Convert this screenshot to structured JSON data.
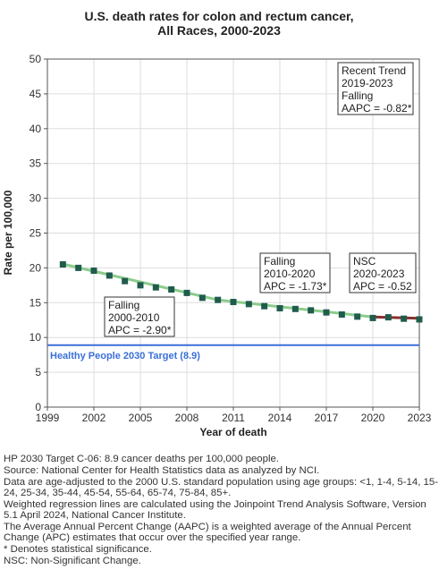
{
  "chart_data": {
    "type": "scatter",
    "title_lines": [
      "U.S. death rates for colon and rectum cancer,",
      "All Races,  2000-2023"
    ],
    "xlabel": "Year of death",
    "ylabel": "Rate per 100,000",
    "xlim": [
      1999,
      2023
    ],
    "ylim": [
      0,
      50
    ],
    "xticks": [
      1999,
      2002,
      2005,
      2008,
      2011,
      2014,
      2017,
      2020,
      2023
    ],
    "yticks": [
      0,
      5,
      10,
      15,
      20,
      25,
      30,
      35,
      40,
      45,
      50
    ],
    "grid": true,
    "points": {
      "x": [
        2000,
        2001,
        2002,
        2003,
        2004,
        2005,
        2006,
        2007,
        2008,
        2009,
        2010,
        2011,
        2012,
        2013,
        2014,
        2015,
        2016,
        2017,
        2018,
        2019,
        2020,
        2021,
        2022,
        2023
      ],
      "y": [
        20.5,
        20.0,
        19.6,
        18.9,
        18.1,
        17.5,
        17.2,
        16.9,
        16.4,
        15.7,
        15.4,
        15.1,
        14.8,
        14.5,
        14.2,
        14.1,
        13.9,
        13.6,
        13.3,
        13.0,
        12.8,
        12.9,
        12.7,
        12.6
      ],
      "color": "#1f5c4e"
    },
    "trend_segments": [
      {
        "x": [
          2000,
          2010
        ],
        "y": [
          20.55,
          15.4
        ],
        "color": "#8ccc8c"
      },
      {
        "x": [
          2010,
          2020
        ],
        "y": [
          15.4,
          12.95
        ],
        "color": "#8ccc8c"
      },
      {
        "x": [
          2020,
          2023
        ],
        "y": [
          12.95,
          12.75
        ],
        "color": "#8b3030"
      }
    ],
    "target": {
      "value": 8.9,
      "label": "Healthy People 2030 Target (8.9)",
      "color": "#3a6fd8"
    },
    "annotations": [
      {
        "lines": [
          "Recent Trend",
          "2019-2023",
          "Falling",
          "AAPC = -0.82*"
        ]
      },
      {
        "lines": [
          "Falling",
          "2010-2020",
          "APC = -1.73*"
        ]
      },
      {
        "lines": [
          "NSC",
          "2020-2023",
          "APC = -0.52"
        ]
      },
      {
        "lines": [
          "Falling",
          "2000-2010",
          "APC = -2.90*"
        ]
      }
    ]
  },
  "footnotes": [
    "HP 2030 Target C-06: 8.9 cancer deaths per 100,000 people.",
    "Source: National Center for Health Statistics data as analyzed by NCI.",
    "Data are age-adjusted to the 2000 U.S. standard population using age groups: <1, 1-4, 5-14, 15-24, 25-34, 35-44, 45-54, 55-64, 65-74, 75-84, 85+.",
    "Weighted regression lines are calculated using the Joinpoint Trend Analysis Software, Version 5.1 April 2024, National Cancer Institute.",
    "The Average Annual Percent Change (AAPC) is a weighted average of the Annual Percent Change (APC) estimates that occur over the specified year range.",
    "* Denotes statistical significance.",
    "NSC: Non-Significant Change."
  ]
}
